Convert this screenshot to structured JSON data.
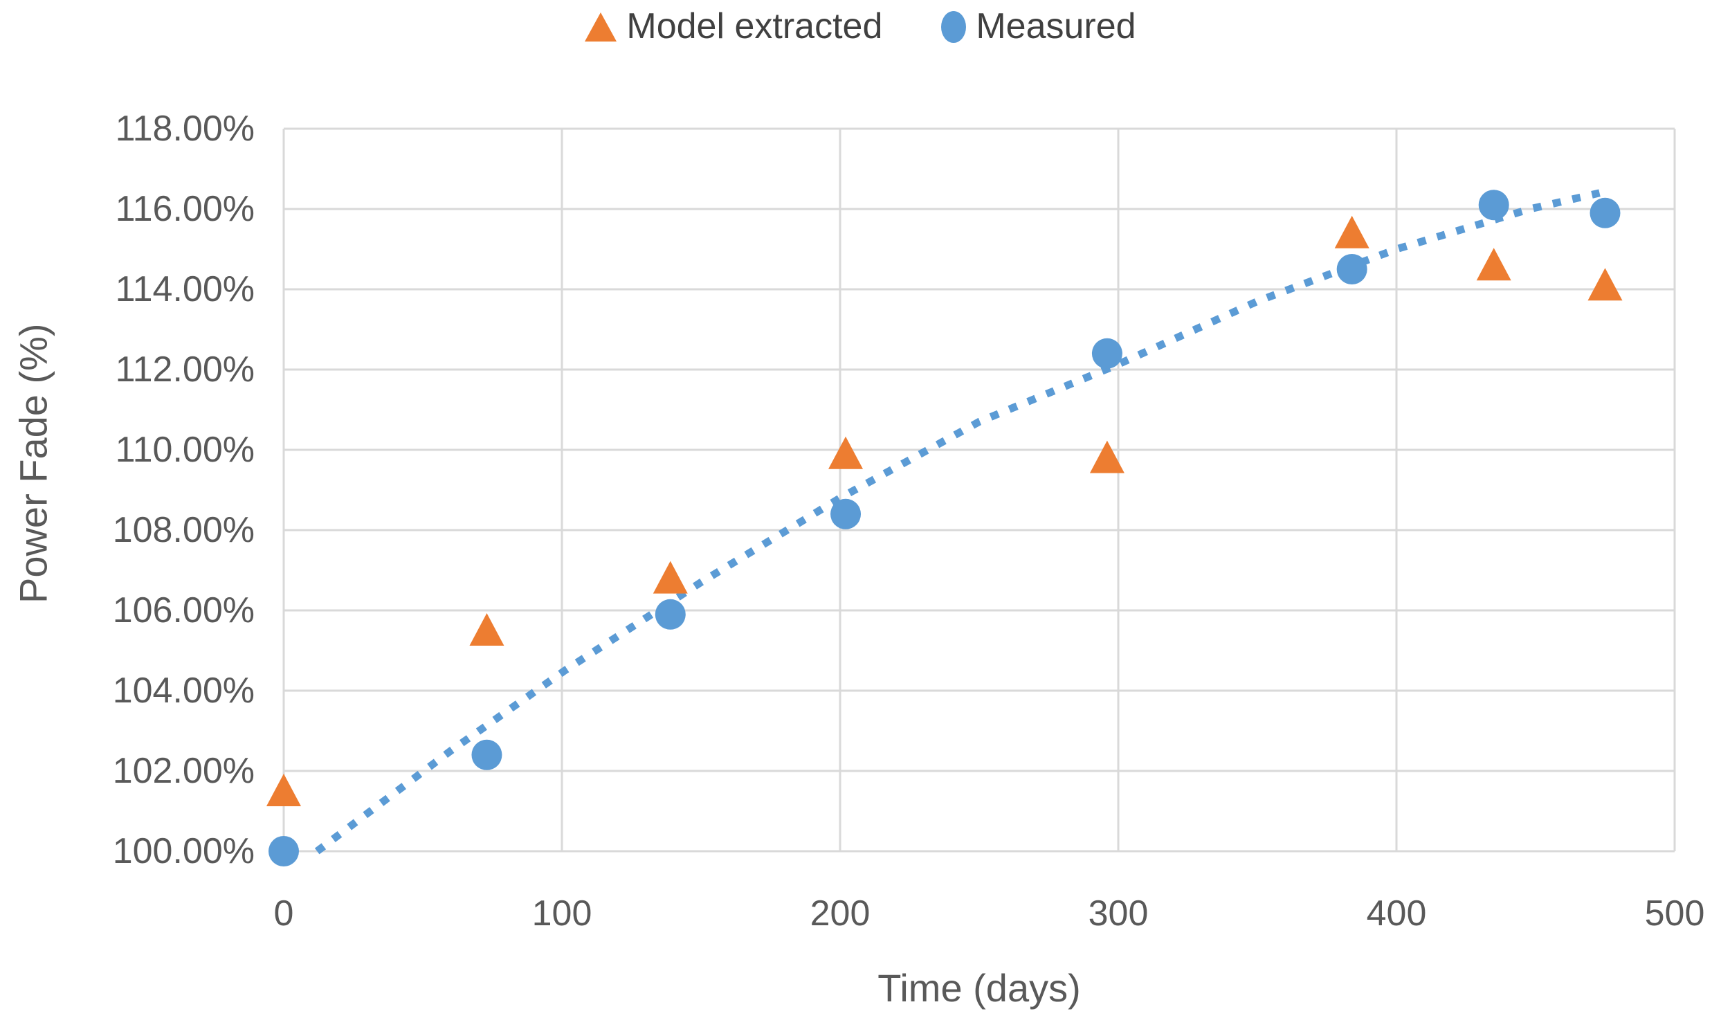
{
  "chart_data": {
    "type": "scatter",
    "title": "",
    "xlabel": "Time (days)",
    "ylabel": "Power Fade (%)",
    "xlim": [
      0,
      500
    ],
    "ylim": [
      100,
      118
    ],
    "grid": true,
    "legend_position": "top-center",
    "x_ticks": {
      "values": [
        0,
        100,
        200,
        300,
        400,
        500
      ],
      "labels": [
        "0",
        "100",
        "200",
        "300",
        "400",
        "500"
      ]
    },
    "y_ticks": {
      "values": [
        100,
        102,
        104,
        106,
        108,
        110,
        112,
        114,
        116,
        118
      ],
      "labels": [
        "100.00%",
        "102.00%",
        "104.00%",
        "106.00%",
        "108.00%",
        "110.00%",
        "112.00%",
        "114.00%",
        "116.00%",
        "118.00%"
      ]
    },
    "series": [
      {
        "name": "Model extracted",
        "marker": "triangle",
        "color": "#ED7D31",
        "points": [
          [
            0,
            101.5
          ],
          [
            73,
            105.5
          ],
          [
            139,
            106.8
          ],
          [
            202,
            109.9
          ],
          [
            296,
            109.8
          ],
          [
            384,
            115.4
          ],
          [
            435,
            114.6
          ],
          [
            475,
            114.1
          ]
        ]
      },
      {
        "name": "Measured",
        "marker": "circle",
        "color": "#5B9BD5",
        "points": [
          [
            0,
            100.0
          ],
          [
            73,
            102.4
          ],
          [
            139,
            105.9
          ],
          [
            202,
            108.4
          ],
          [
            296,
            112.4
          ],
          [
            384,
            114.5
          ],
          [
            435,
            116.1
          ],
          [
            475,
            115.9
          ]
        ]
      }
    ],
    "trendline": {
      "for_series": "Measured",
      "style": "dotted",
      "color": "#5B9BD5",
      "points": [
        [
          12,
          100.0
        ],
        [
          60,
          102.5
        ],
        [
          101,
          104.5
        ],
        [
          150,
          106.7
        ],
        [
          200,
          108.8
        ],
        [
          250,
          110.7
        ],
        [
          299,
          112.1
        ],
        [
          350,
          113.7
        ],
        [
          400,
          115.0
        ],
        [
          448,
          116.0
        ],
        [
          473,
          116.4
        ]
      ]
    }
  },
  "colors": {
    "background": "#FFFFFF",
    "gridline": "#D9D9D9",
    "axis_line": "#D9D9D9",
    "tick_text": "#595959",
    "axis_title_text": "#595959",
    "legend_text": "#404040",
    "series_orange": "#ED7D31",
    "series_blue": "#5B9BD5"
  }
}
